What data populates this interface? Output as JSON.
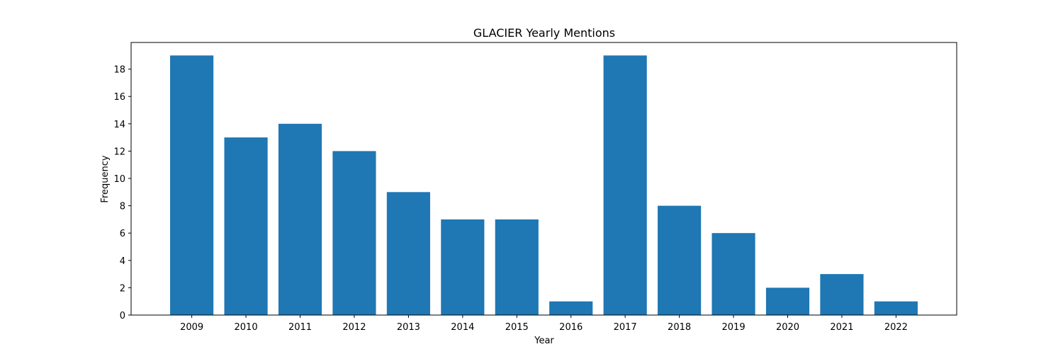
{
  "chart_data": {
    "type": "bar",
    "title": "GLACIER Yearly Mentions",
    "xlabel": "Year",
    "ylabel": "Frequency",
    "categories": [
      "2009",
      "2010",
      "2011",
      "2012",
      "2013",
      "2014",
      "2015",
      "2016",
      "2017",
      "2018",
      "2019",
      "2020",
      "2021",
      "2022"
    ],
    "values": [
      19,
      13,
      14,
      12,
      9,
      7,
      7,
      1,
      19,
      8,
      6,
      2,
      3,
      1
    ],
    "ylim": [
      0,
      19.95
    ],
    "yticks": [
      0,
      2,
      4,
      6,
      8,
      10,
      12,
      14,
      16,
      18
    ],
    "grid": false,
    "legend": "none",
    "bar_color": "#1f77b4"
  }
}
